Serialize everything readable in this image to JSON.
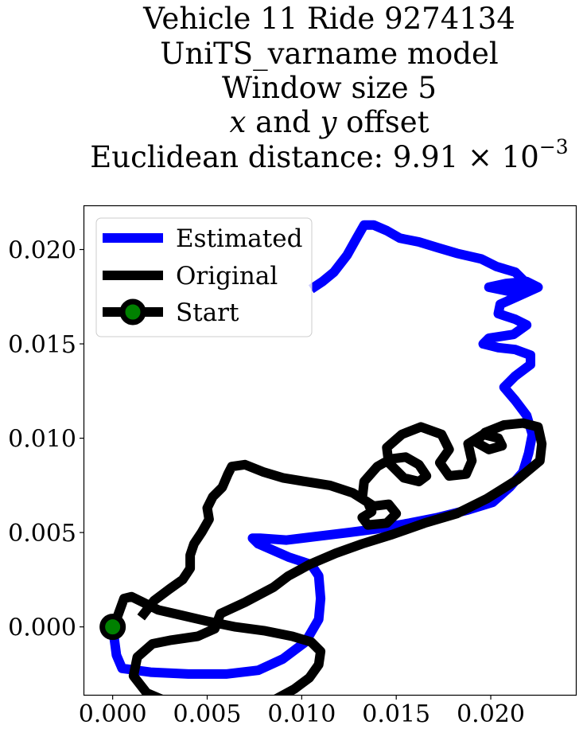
{
  "chart_data": {
    "type": "line",
    "title_lines": [
      "Vehicle 11 Ride 9274134",
      "UniTS_varname model",
      "Window size 5",
      "x and y offset",
      "Euclidean distance: 9.91 × 10^-3"
    ],
    "title_parts": {
      "line4_x": "x",
      "line4_mid": " and ",
      "line4_y": "y",
      "line4_end": " offset",
      "line5_text": "Euclidean distance: 9.91 × 10",
      "line5_exp": "−3"
    },
    "xlabel": "",
    "ylabel": "",
    "xlim": [
      -0.0015,
      0.0245
    ],
    "ylim": [
      -0.0036,
      0.0223
    ],
    "x_ticks": [
      0.0,
      0.005,
      0.01,
      0.015,
      0.02
    ],
    "x_tick_labels": [
      "0.000",
      "0.005",
      "0.010",
      "0.015",
      "0.020"
    ],
    "y_ticks": [
      0.0,
      0.005,
      0.01,
      0.015,
      0.02
    ],
    "y_tick_labels": [
      "0.000",
      "0.005",
      "0.010",
      "0.015",
      "0.020"
    ],
    "grid": false,
    "legend_position": "top-left",
    "series": [
      {
        "name": "Estimated",
        "color": "#0000ff",
        "points": [
          [
            0.0,
            0.0
          ],
          [
            0.0002,
            -0.0015
          ],
          [
            0.0005,
            -0.0022
          ],
          [
            0.002,
            -0.0024
          ],
          [
            0.004,
            -0.0025
          ],
          [
            0.006,
            -0.0025
          ],
          [
            0.0077,
            -0.0023
          ],
          [
            0.009,
            -0.0017
          ],
          [
            0.0102,
            -0.0008
          ],
          [
            0.0109,
            0.0004
          ],
          [
            0.011,
            0.0015
          ],
          [
            0.0109,
            0.0027
          ],
          [
            0.0105,
            0.0033
          ],
          [
            0.0093,
            0.0037
          ],
          [
            0.0084,
            0.0041
          ],
          [
            0.0077,
            0.0044
          ],
          [
            0.0074,
            0.0047
          ],
          [
            0.0078,
            0.0047
          ],
          [
            0.0092,
            0.0046
          ],
          [
            0.0108,
            0.0048
          ],
          [
            0.0125,
            0.005
          ],
          [
            0.014,
            0.0052
          ],
          [
            0.0157,
            0.0055
          ],
          [
            0.0172,
            0.0058
          ],
          [
            0.0188,
            0.0062
          ],
          [
            0.0201,
            0.0066
          ],
          [
            0.021,
            0.0074
          ],
          [
            0.0217,
            0.0082
          ],
          [
            0.022,
            0.0092
          ],
          [
            0.0222,
            0.0102
          ],
          [
            0.0219,
            0.0112
          ],
          [
            0.0213,
            0.012
          ],
          [
            0.0207,
            0.0127
          ],
          [
            0.0213,
            0.0133
          ],
          [
            0.0221,
            0.0139
          ],
          [
            0.0221,
            0.0144
          ],
          [
            0.0213,
            0.0147
          ],
          [
            0.0204,
            0.0148
          ],
          [
            0.0196,
            0.015
          ],
          [
            0.0199,
            0.0153
          ],
          [
            0.0212,
            0.0155
          ],
          [
            0.0219,
            0.016
          ],
          [
            0.0213,
            0.0163
          ],
          [
            0.0204,
            0.0166
          ],
          [
            0.0205,
            0.0171
          ],
          [
            0.0214,
            0.0175
          ],
          [
            0.0225,
            0.018
          ],
          [
            0.0219,
            0.0183
          ],
          [
            0.0208,
            0.0182
          ],
          [
            0.0199,
            0.018
          ],
          [
            0.0209,
            0.0178
          ],
          [
            0.0219,
            0.0182
          ],
          [
            0.0213,
            0.0188
          ],
          [
            0.0203,
            0.0191
          ],
          [
            0.0195,
            0.0195
          ],
          [
            0.0182,
            0.0198
          ],
          [
            0.0172,
            0.0201
          ],
          [
            0.0162,
            0.0204
          ],
          [
            0.0152,
            0.0206
          ],
          [
            0.0145,
            0.021
          ],
          [
            0.0138,
            0.0213
          ],
          [
            0.0133,
            0.0213
          ],
          [
            0.0129,
            0.0206
          ],
          [
            0.0124,
            0.0197
          ],
          [
            0.0117,
            0.0188
          ],
          [
            0.0111,
            0.0183
          ],
          [
            0.0105,
            0.0179
          ]
        ]
      },
      {
        "name": "Original",
        "color": "#000000",
        "points": [
          [
            0.0015,
            0.0005
          ],
          [
            0.0022,
            0.0014
          ],
          [
            0.003,
            0.002
          ],
          [
            0.0037,
            0.0025
          ],
          [
            0.0041,
            0.0031
          ],
          [
            0.0041,
            0.0038
          ],
          [
            0.0043,
            0.0044
          ],
          [
            0.0047,
            0.005
          ],
          [
            0.0051,
            0.0057
          ],
          [
            0.005,
            0.0063
          ],
          [
            0.0053,
            0.0069
          ],
          [
            0.0058,
            0.0074
          ],
          [
            0.0061,
            0.0081
          ],
          [
            0.0063,
            0.0085
          ],
          [
            0.007,
            0.0086
          ],
          [
            0.008,
            0.0082
          ],
          [
            0.009,
            0.0079
          ],
          [
            0.0102,
            0.0077
          ],
          [
            0.0115,
            0.0075
          ],
          [
            0.0127,
            0.0071
          ],
          [
            0.0135,
            0.0066
          ],
          [
            0.0137,
            0.0061
          ],
          [
            0.0132,
            0.0058
          ],
          [
            0.0135,
            0.0054
          ],
          [
            0.0145,
            0.0055
          ],
          [
            0.015,
            0.006
          ],
          [
            0.0146,
            0.0065
          ],
          [
            0.0138,
            0.0064
          ],
          [
            0.0132,
            0.0068
          ],
          [
            0.0133,
            0.0077
          ],
          [
            0.014,
            0.0085
          ],
          [
            0.0147,
            0.0089
          ],
          [
            0.0155,
            0.009
          ],
          [
            0.0162,
            0.0086
          ],
          [
            0.0166,
            0.008
          ],
          [
            0.0162,
            0.0077
          ],
          [
            0.0154,
            0.0079
          ],
          [
            0.0146,
            0.0087
          ],
          [
            0.0145,
            0.0095
          ],
          [
            0.0153,
            0.0102
          ],
          [
            0.0163,
            0.0106
          ],
          [
            0.0174,
            0.0102
          ],
          [
            0.0178,
            0.0094
          ],
          [
            0.0173,
            0.0087
          ],
          [
            0.0178,
            0.008
          ],
          [
            0.0187,
            0.0081
          ],
          [
            0.019,
            0.0088
          ],
          [
            0.0188,
            0.0097
          ],
          [
            0.0196,
            0.0102
          ],
          [
            0.0204,
            0.01
          ],
          [
            0.0206,
            0.0096
          ],
          [
            0.0199,
            0.0094
          ],
          [
            0.0192,
            0.0098
          ],
          [
            0.0197,
            0.0103
          ],
          [
            0.0207,
            0.0107
          ],
          [
            0.0217,
            0.0108
          ],
          [
            0.0225,
            0.0106
          ],
          [
            0.0227,
            0.0097
          ],
          [
            0.0226,
            0.0088
          ],
          [
            0.0214,
            0.0078
          ],
          [
            0.0198,
            0.0068
          ],
          [
            0.0182,
            0.006
          ],
          [
            0.0165,
            0.0055
          ],
          [
            0.0148,
            0.0049
          ],
          [
            0.0132,
            0.0044
          ],
          [
            0.0118,
            0.0039
          ],
          [
            0.0104,
            0.0033
          ],
          [
            0.0093,
            0.0027
          ],
          [
            0.0085,
            0.0021
          ],
          [
            0.007,
            0.0013
          ],
          [
            0.0057,
            0.0007
          ],
          [
            0.0054,
            -0.0001
          ],
          [
            0.0045,
            -0.0005
          ],
          [
            0.0031,
            -0.0007
          ],
          [
            0.0021,
            -0.0009
          ],
          [
            0.0013,
            -0.0016
          ],
          [
            0.0011,
            -0.0026
          ],
          [
            0.0018,
            -0.0035
          ],
          [
            0.0032,
            -0.0041
          ],
          [
            0.0047,
            -0.0044
          ],
          [
            0.006,
            -0.0045
          ],
          [
            0.0073,
            -0.0044
          ],
          [
            0.0085,
            -0.0039
          ],
          [
            0.0096,
            -0.0033
          ],
          [
            0.0104,
            -0.0027
          ],
          [
            0.0109,
            -0.002
          ],
          [
            0.011,
            -0.0013
          ],
          [
            0.0105,
            -0.0008
          ],
          [
            0.0095,
            -0.0005
          ],
          [
            0.008,
            -0.0002
          ],
          [
            0.0065,
            0.0
          ],
          [
            0.005,
            0.0003
          ],
          [
            0.0037,
            0.0006
          ],
          [
            0.0024,
            0.0009
          ],
          [
            0.0016,
            0.0013
          ],
          [
            0.001,
            0.0016
          ],
          [
            0.0006,
            0.0015
          ],
          [
            0.0002,
            0.0004
          ],
          [
            0.0,
            0.0
          ]
        ]
      }
    ],
    "start_marker": {
      "name": "Start",
      "x": 0.0,
      "y": 0.0,
      "fill": "#008000",
      "edge": "#000000"
    }
  }
}
